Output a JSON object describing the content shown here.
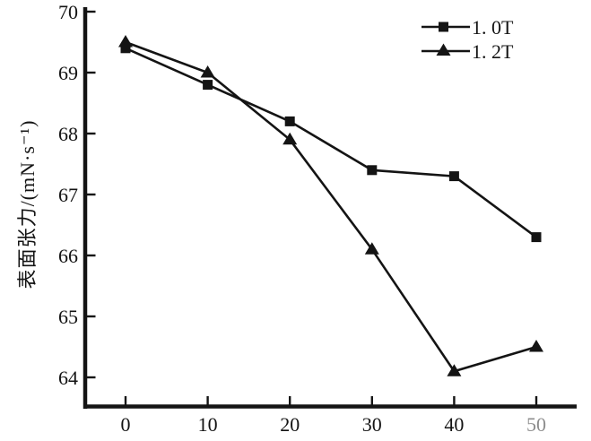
{
  "chart_data": {
    "type": "line",
    "title": "",
    "xlabel": "",
    "ylabel": "表面张力/(mN·s⁻¹)",
    "x": [
      0,
      10,
      20,
      30,
      40,
      50
    ],
    "xticks": [
      0,
      10,
      20,
      30,
      40,
      50
    ],
    "yticks": [
      64,
      65,
      66,
      67,
      68,
      69,
      70
    ],
    "xlim": [
      -5,
      55
    ],
    "ylim": [
      63.5,
      70.1
    ],
    "grid": false,
    "legend_position": "top-right",
    "line_color": "#141414",
    "series": [
      {
        "name": "1. 0T",
        "marker": "square",
        "values": [
          69.4,
          68.8,
          68.2,
          67.4,
          67.3,
          66.3
        ]
      },
      {
        "name": "1. 2T",
        "marker": "triangle",
        "values": [
          69.5,
          69.0,
          67.9,
          66.1,
          64.1,
          64.5
        ]
      }
    ]
  }
}
